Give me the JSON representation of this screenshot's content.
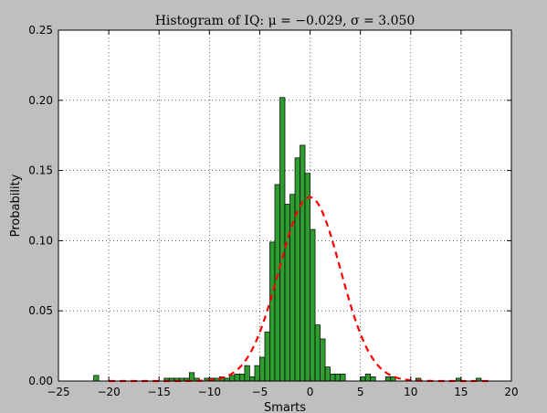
{
  "chart_data": {
    "type": "bar",
    "title": "Histogram of IQ: μ = −0.029,  σ = 3.050",
    "xlabel": "Smarts",
    "ylabel": "Probability",
    "xlim": [
      -25,
      20
    ],
    "ylim": [
      0,
      0.25
    ],
    "xticks": [
      "−25",
      "−20",
      "−15",
      "−10",
      "−5",
      "0",
      "5",
      "10",
      "15",
      "20"
    ],
    "yticks": [
      "0.00",
      "0.05",
      "0.10",
      "0.15",
      "0.20",
      "0.25"
    ],
    "grid": true,
    "colors": {
      "bars": "#2e9c2e",
      "bar_edge": "#000000",
      "curve": "#ff0000",
      "background": "#ffffff",
      "figure": "#bfbfbf"
    },
    "histogram": {
      "bin_width": 0.5,
      "bins": [
        {
          "x0": -21.5,
          "value": 0.004
        },
        {
          "x0": -14.5,
          "value": 0.002
        },
        {
          "x0": -14.0,
          "value": 0.002
        },
        {
          "x0": -13.5,
          "value": 0.002
        },
        {
          "x0": -13.0,
          "value": 0.002
        },
        {
          "x0": -12.5,
          "value": 0.002
        },
        {
          "x0": -12.0,
          "value": 0.006
        },
        {
          "x0": -11.5,
          "value": 0.002
        },
        {
          "x0": -10.5,
          "value": 0.002
        },
        {
          "x0": -10.0,
          "value": 0.002
        },
        {
          "x0": -9.5,
          "value": 0.002
        },
        {
          "x0": -9.0,
          "value": 0.003
        },
        {
          "x0": -8.5,
          "value": 0.002
        },
        {
          "x0": -8.0,
          "value": 0.004
        },
        {
          "x0": -7.5,
          "value": 0.005
        },
        {
          "x0": -7.0,
          "value": 0.005
        },
        {
          "x0": -6.5,
          "value": 0.011
        },
        {
          "x0": -6.0,
          "value": 0.003
        },
        {
          "x0": -5.5,
          "value": 0.011
        },
        {
          "x0": -5.0,
          "value": 0.017
        },
        {
          "x0": -4.5,
          "value": 0.035
        },
        {
          "x0": -4.0,
          "value": 0.099
        },
        {
          "x0": -3.5,
          "value": 0.14
        },
        {
          "x0": -3.0,
          "value": 0.202
        },
        {
          "x0": -2.5,
          "value": 0.126
        },
        {
          "x0": -2.0,
          "value": 0.133
        },
        {
          "x0": -1.5,
          "value": 0.159
        },
        {
          "x0": -1.0,
          "value": 0.168
        },
        {
          "x0": -0.5,
          "value": 0.148
        },
        {
          "x0": 0.0,
          "value": 0.108
        },
        {
          "x0": 0.5,
          "value": 0.04
        },
        {
          "x0": 1.0,
          "value": 0.03
        },
        {
          "x0": 1.5,
          "value": 0.01
        },
        {
          "x0": 2.0,
          "value": 0.005
        },
        {
          "x0": 2.5,
          "value": 0.005
        },
        {
          "x0": 3.0,
          "value": 0.005
        },
        {
          "x0": 5.0,
          "value": 0.003
        },
        {
          "x0": 5.5,
          "value": 0.005
        },
        {
          "x0": 6.0,
          "value": 0.003
        },
        {
          "x0": 7.5,
          "value": 0.003
        },
        {
          "x0": 8.0,
          "value": 0.003
        },
        {
          "x0": 10.5,
          "value": 0.002
        },
        {
          "x0": 14.5,
          "value": 0.002
        },
        {
          "x0": 16.5,
          "value": 0.002
        }
      ]
    },
    "curve": {
      "style": "dashed",
      "distribution": "normal",
      "mu": -0.029,
      "sigma": 3.05,
      "peak": 0.131
    }
  }
}
